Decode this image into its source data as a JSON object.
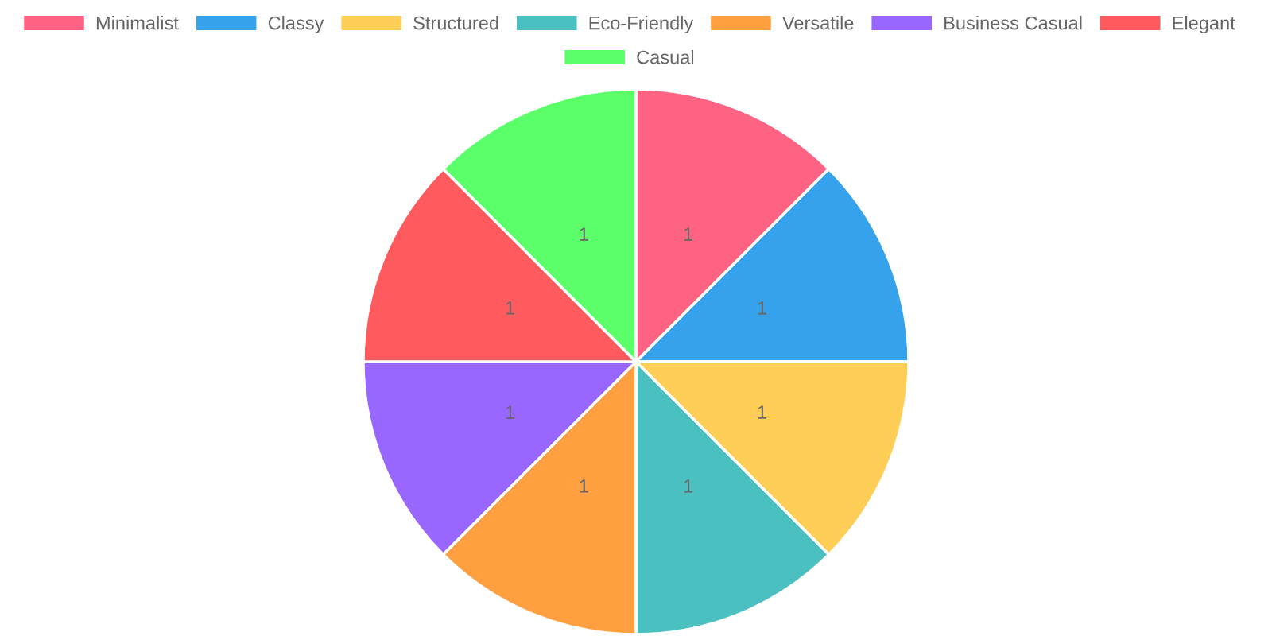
{
  "chart_data": {
    "type": "pie",
    "categories": [
      "Minimalist",
      "Classy",
      "Structured",
      "Eco-Friendly",
      "Versatile",
      "Business Casual",
      "Elegant",
      "Casual"
    ],
    "values": [
      1,
      1,
      1,
      1,
      1,
      1,
      1,
      1
    ],
    "colors": [
      "#ff6384",
      "#36a2eb",
      "#ffce56",
      "#4bc0c0",
      "#ff9f40",
      "#9966ff",
      "#ff5a5e",
      "#5aff6a"
    ],
    "data_labels": true,
    "legend": "top"
  }
}
